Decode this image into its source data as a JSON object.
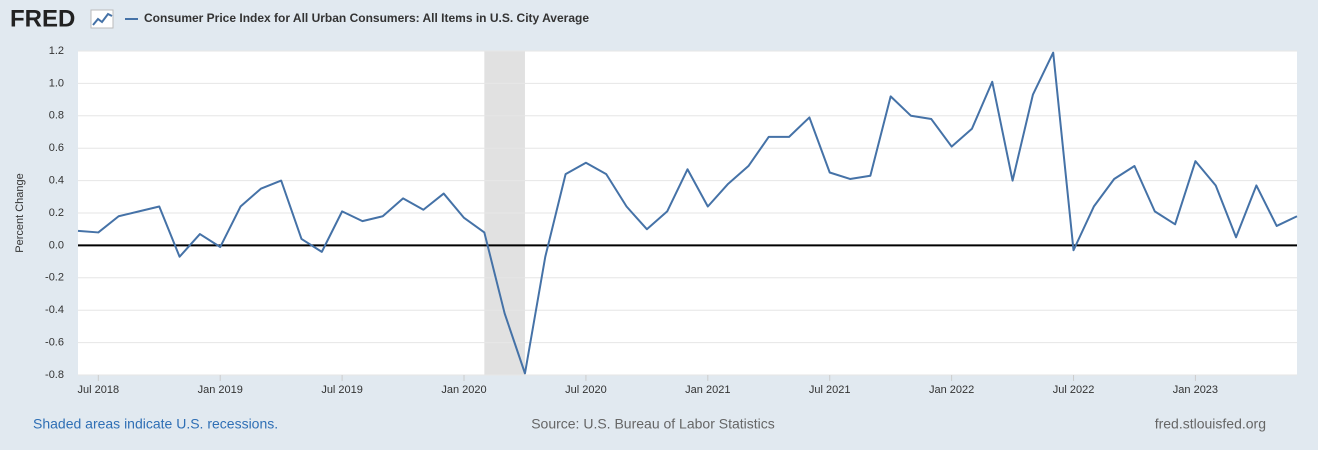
{
  "logo": "FRED",
  "footer": {
    "note": "Shaded areas indicate U.S. recessions.",
    "source": "Source: U.S. Bureau of Labor Statistics",
    "site": "fred.stlouisfed.org"
  },
  "chart_data": {
    "type": "line",
    "y_label": "Percent Change",
    "x": [
      "2018-06",
      "2018-07",
      "2018-08",
      "2018-09",
      "2018-10",
      "2018-11",
      "2018-12",
      "2019-01",
      "2019-02",
      "2019-03",
      "2019-04",
      "2019-05",
      "2019-06",
      "2019-07",
      "2019-08",
      "2019-09",
      "2019-10",
      "2019-11",
      "2019-12",
      "2020-01",
      "2020-02",
      "2020-03",
      "2020-04",
      "2020-05",
      "2020-06",
      "2020-07",
      "2020-08",
      "2020-09",
      "2020-10",
      "2020-11",
      "2020-12",
      "2021-01",
      "2021-02",
      "2021-03",
      "2021-04",
      "2021-05",
      "2021-06",
      "2021-07",
      "2021-08",
      "2021-09",
      "2021-10",
      "2021-11",
      "2021-12",
      "2022-01",
      "2022-02",
      "2022-03",
      "2022-04",
      "2022-05",
      "2022-06",
      "2022-07",
      "2022-08",
      "2022-09",
      "2022-10",
      "2022-11",
      "2022-12",
      "2023-01",
      "2023-02",
      "2023-03",
      "2023-04",
      "2023-05",
      "2023-06"
    ],
    "series": [
      {
        "name": "Consumer Price Index for All Urban Consumers: All Items in U.S. City Average",
        "color": "#4572a7",
        "values": [
          0.09,
          0.08,
          0.18,
          0.21,
          0.24,
          -0.07,
          0.07,
          -0.01,
          0.24,
          0.35,
          0.4,
          0.04,
          -0.04,
          0.21,
          0.15,
          0.18,
          0.29,
          0.22,
          0.32,
          0.17,
          0.08,
          -0.42,
          -0.79,
          -0.07,
          0.44,
          0.51,
          0.44,
          0.24,
          0.1,
          0.21,
          0.47,
          0.24,
          0.38,
          0.49,
          0.67,
          0.67,
          0.79,
          0.45,
          0.41,
          0.43,
          0.92,
          0.8,
          0.78,
          0.61,
          0.72,
          1.01,
          0.4,
          0.93,
          1.19,
          -0.03,
          0.24,
          0.41,
          0.49,
          0.21,
          0.13,
          0.52,
          0.37,
          0.05,
          0.37,
          0.12,
          0.18
        ]
      }
    ],
    "xlim": [
      "2018-06",
      "2023-06"
    ],
    "xticks": [
      {
        "value": "2018-07",
        "label": "Jul 2018"
      },
      {
        "value": "2019-01",
        "label": "Jan 2019"
      },
      {
        "value": "2019-07",
        "label": "Jul 2019"
      },
      {
        "value": "2020-01",
        "label": "Jan 2020"
      },
      {
        "value": "2020-07",
        "label": "Jul 2020"
      },
      {
        "value": "2021-01",
        "label": "Jan 2021"
      },
      {
        "value": "2021-07",
        "label": "Jul 2021"
      },
      {
        "value": "2022-01",
        "label": "Jan 2022"
      },
      {
        "value": "2022-07",
        "label": "Jul 2022"
      },
      {
        "value": "2023-01",
        "label": "Jan 2023"
      }
    ],
    "ylim": [
      -0.8,
      1.2
    ],
    "yticks": [
      1.2,
      {
        "value": 1,
        "label": "1.0"
      },
      0.8,
      0.6,
      0.4,
      0.2,
      {
        "value": 0,
        "label": "0.0"
      },
      -0.2,
      -0.4,
      -0.6,
      -0.8
    ],
    "grid": true,
    "recessions": [
      {
        "start": "2020-02",
        "end": "2020-04"
      }
    ]
  }
}
